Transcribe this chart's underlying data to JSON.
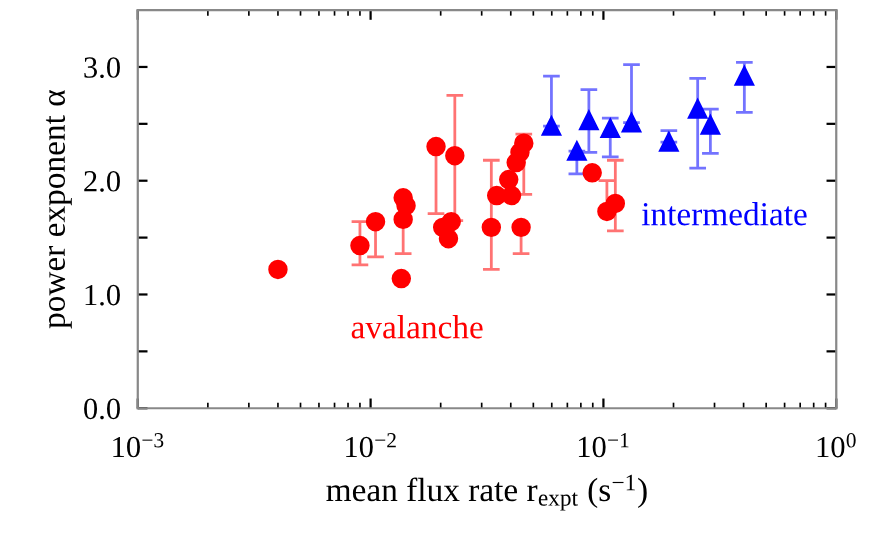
{
  "chart_data": {
    "type": "scatter",
    "xlabel": "mean flux rate r$_{expt}$ (s$^{−1}$)",
    "ylabel": "power exponent α",
    "log": "x",
    "xlim": [
      0.001,
      1
    ],
    "xticks": [
      {
        "value": 0.001,
        "label": "10$^{−3}$"
      },
      {
        "value": 0.01,
        "label": "10$^{−2}$"
      },
      {
        "value": 0.1,
        "label": "10$^{−1}$"
      },
      {
        "value": 1,
        "label": "10$^{0}$"
      }
    ],
    "ylim": [
      0,
      3.5
    ],
    "yticks": [
      {
        "value": 0,
        "label": "0.0"
      },
      {
        "value": 0.5,
        "label": null
      },
      {
        "value": 1,
        "label": "1.0"
      },
      {
        "value": 1.5,
        "label": null
      },
      {
        "value": 2,
        "label": "2.0"
      },
      {
        "value": 2.5,
        "label": null
      },
      {
        "value": 3,
        "label": "3.0"
      }
    ],
    "grid": false,
    "legend": false,
    "series": [
      {
        "name": "avalanche",
        "color": "#ff0000",
        "marker": "circle",
        "x": [
          0.004,
          0.009,
          0.0105,
          0.01355,
          0.0138,
          0.0138,
          0.0142,
          0.0191,
          0.0204,
          0.0216,
          0.0222,
          0.023,
          0.033,
          0.0348,
          0.0392,
          0.0403,
          0.0422,
          0.0438,
          0.0455,
          0.0443,
          0.0895,
          0.1035,
          0.1125
        ],
        "values": [
          1.22,
          1.43,
          1.64,
          1.14,
          1.66,
          1.85,
          1.78,
          2.3,
          1.59,
          1.49,
          1.64,
          2.22,
          1.59,
          1.87,
          2.01,
          1.87,
          2.16,
          2.25,
          2.33,
          1.59,
          2.07,
          1.73,
          1.8
        ],
        "errors": [
          null,
          [
            1.26,
            1.64
          ],
          [
            1.33,
            1.64
          ],
          null,
          [
            1.36,
            1.66
          ],
          null,
          null,
          [
            1.71,
            2.3
          ],
          null,
          null,
          null,
          [
            1.65,
            2.75
          ],
          [
            1.22,
            2.18
          ],
          null,
          null,
          null,
          null,
          null,
          [
            1.88,
            2.41
          ],
          [
            1.36,
            1.59
          ],
          null,
          [
            1.73,
            2.0
          ],
          [
            1.56,
            2.18
          ]
        ]
      },
      {
        "name": "intermediate",
        "color": "#0000ff",
        "marker": "triangle",
        "x": [
          0.0598,
          0.0769,
          0.0866,
          0.107,
          0.132,
          0.191,
          0.254,
          0.288,
          0.403
        ],
        "values": [
          2.48,
          2.26,
          2.53,
          2.46,
          2.51,
          2.34,
          2.63,
          2.49,
          2.92
        ],
        "errors": [
          [
            2.48,
            2.92
          ],
          [
            2.06,
            2.26
          ],
          [
            2.25,
            2.8
          ],
          [
            2.21,
            2.55
          ],
          [
            2.51,
            3.02
          ],
          [
            2.34,
            2.44
          ],
          [
            2.11,
            2.9
          ],
          [
            2.24,
            2.63
          ],
          [
            2.6,
            3.04
          ]
        ]
      }
    ]
  }
}
